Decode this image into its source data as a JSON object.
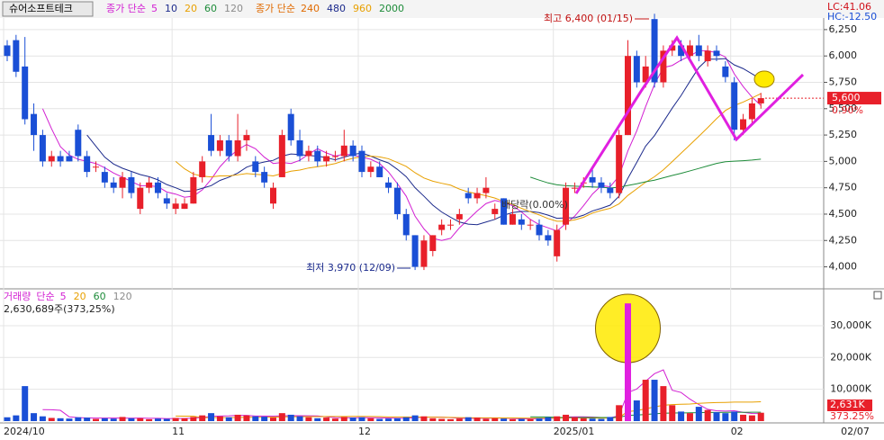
{
  "header": {
    "name": "슈어소프트테크",
    "lc": "LC:41.06",
    "hc": "HC:-12.50"
  },
  "chart_data": {
    "type": "candlestick",
    "ma_label": "종가 단순",
    "ma_periods": [
      5,
      10,
      20,
      60,
      120
    ],
    "ma_colors": [
      "#d21fd2",
      "#1c2a8c",
      "#e8a000",
      "#1e8c3a",
      "#8c8c8c"
    ],
    "ma_long_label": "종가 단순",
    "ma_long_periods": [
      240,
      480,
      960,
      2000
    ],
    "ma_long_colors": [
      "#e06a00",
      "#1c2a8c",
      "#e8a000",
      "#1e8c3a"
    ],
    "categories": [
      "2024/10",
      null,
      null,
      null,
      null,
      null,
      null,
      null,
      null,
      null,
      null,
      null,
      null,
      null,
      null,
      null,
      null,
      null,
      null,
      "11",
      null,
      null,
      null,
      null,
      null,
      null,
      null,
      null,
      null,
      null,
      null,
      null,
      null,
      null,
      null,
      null,
      null,
      null,
      null,
      null,
      "12",
      null,
      null,
      null,
      null,
      null,
      null,
      null,
      null,
      null,
      null,
      null,
      null,
      null,
      null,
      null,
      null,
      null,
      null,
      null,
      null,
      null,
      "2025/01",
      null,
      null,
      null,
      null,
      null,
      null,
      null,
      null,
      null,
      null,
      null,
      null,
      null,
      null,
      null,
      null,
      null,
      null,
      null,
      "02",
      null,
      null,
      null
    ],
    "ohlc": [
      [
        6100,
        6150,
        5950,
        6000
      ],
      [
        6150,
        6200,
        5800,
        5850
      ],
      [
        5900,
        6180,
        5350,
        5400
      ],
      [
        5450,
        5550,
        5100,
        5250
      ],
      [
        5250,
        5300,
        4950,
        5000
      ],
      [
        5000,
        5100,
        4950,
        5050
      ],
      [
        5050,
        5100,
        4950,
        5000
      ],
      [
        5050,
        5100,
        5000,
        5000
      ],
      [
        5300,
        5350,
        5000,
        5050
      ],
      [
        5050,
        5100,
        4850,
        4900
      ],
      [
        4950,
        5000,
        4900,
        4950
      ],
      [
        4900,
        4950,
        4750,
        4800
      ],
      [
        4800,
        4850,
        4700,
        4750
      ],
      [
        4750,
        4900,
        4650,
        4850
      ],
      [
        4850,
        4900,
        4650,
        4700
      ],
      [
        4550,
        4800,
        4500,
        4750
      ],
      [
        4750,
        4850,
        4700,
        4800
      ],
      [
        4800,
        4850,
        4650,
        4700
      ],
      [
        4650,
        4700,
        4550,
        4600
      ],
      [
        4550,
        4650,
        4500,
        4600
      ],
      [
        4550,
        4650,
        4550,
        4600
      ],
      [
        4600,
        4900,
        4600,
        4850
      ],
      [
        4850,
        5050,
        4800,
        5000
      ],
      [
        5250,
        5450,
        5050,
        5100
      ],
      [
        5100,
        5250,
        5050,
        5200
      ],
      [
        5200,
        5250,
        5000,
        5050
      ],
      [
        5050,
        5450,
        5000,
        5200
      ],
      [
        5200,
        5300,
        5100,
        5250
      ],
      [
        5000,
        5050,
        4850,
        4900
      ],
      [
        4900,
        4950,
        4750,
        4800
      ],
      [
        4600,
        4800,
        4550,
        4750
      ],
      [
        4850,
        5300,
        4850,
        5250
      ],
      [
        5450,
        5500,
        5150,
        5200
      ],
      [
        5200,
        5300,
        5000,
        5050
      ],
      [
        5050,
        5150,
        5000,
        5100
      ],
      [
        5100,
        5150,
        4950,
        5000
      ],
      [
        5000,
        5100,
        4950,
        5050
      ],
      [
        5050,
        5100,
        5000,
        5050
      ],
      [
        5050,
        5300,
        5000,
        5150
      ],
      [
        5150,
        5200,
        5000,
        5050
      ],
      [
        5100,
        5150,
        4850,
        4900
      ],
      [
        4900,
        5000,
        4850,
        4950
      ],
      [
        4950,
        5000,
        4850,
        4850
      ],
      [
        4800,
        4850,
        4700,
        4750
      ],
      [
        4750,
        4800,
        4450,
        4500
      ],
      [
        4500,
        4550,
        4250,
        4300
      ],
      [
        4300,
        4300,
        3970,
        4000
      ],
      [
        4000,
        4300,
        3970,
        4250
      ],
      [
        4150,
        4300,
        4100,
        4300
      ],
      [
        4350,
        4450,
        4300,
        4400
      ],
      [
        4400,
        4450,
        4350,
        4400
      ],
      [
        4450,
        4550,
        4400,
        4500
      ],
      [
        4700,
        4750,
        4600,
        4650
      ],
      [
        4650,
        4750,
        4600,
        4700
      ],
      [
        4700,
        4850,
        4650,
        4750
      ],
      [
        4500,
        4600,
        4450,
        4550
      ],
      [
        4650,
        4650,
        4400,
        4400
      ],
      [
        4400,
        4550,
        4400,
        4500
      ],
      [
        4450,
        4500,
        4350,
        4400
      ],
      [
        4400,
        4450,
        4350,
        4400
      ],
      [
        4400,
        4450,
        4250,
        4300
      ],
      [
        4300,
        4350,
        4200,
        4250
      ],
      [
        4100,
        4400,
        4050,
        4350
      ],
      [
        4400,
        4800,
        4350,
        4750
      ],
      [
        4750,
        4800,
        4700,
        4750
      ],
      [
        4800,
        4850,
        4750,
        4800
      ],
      [
        4850,
        4950,
        4750,
        4800
      ],
      [
        4800,
        4850,
        4700,
        4750
      ],
      [
        4750,
        4800,
        4650,
        4700
      ],
      [
        4700,
        5300,
        4650,
        5250
      ],
      [
        5250,
        6150,
        5250,
        6000
      ],
      [
        6000,
        6050,
        5700,
        5750
      ],
      [
        5750,
        6000,
        5700,
        5900
      ],
      [
        6350,
        6400,
        5700,
        5750
      ],
      [
        5750,
        6100,
        5700,
        6050
      ],
      [
        6050,
        6150,
        6000,
        6100
      ],
      [
        6100,
        6150,
        5950,
        6000
      ],
      [
        6000,
        6150,
        5950,
        6100
      ],
      [
        6100,
        6200,
        5950,
        6000
      ],
      [
        5950,
        6100,
        5900,
        6050
      ],
      [
        6050,
        6100,
        5950,
        6000
      ],
      [
        5900,
        5950,
        5750,
        5800
      ],
      [
        5750,
        5800,
        5200,
        5300
      ],
      [
        5300,
        5450,
        5250,
        5400
      ],
      [
        5400,
        5600,
        5350,
        5550
      ],
      [
        5550,
        5650,
        5500,
        5600
      ]
    ],
    "up_color": "#e8202a",
    "down_color": "#1a4fd6",
    "ylim": [
      3800,
      6360
    ],
    "yticks": [
      {
        "value": 4000,
        "label": "4,000"
      },
      {
        "value": 4250,
        "label": "4,250"
      },
      {
        "value": 4500,
        "label": "4,500"
      },
      {
        "value": 4750,
        "label": "4,750"
      },
      {
        "value": 5000,
        "label": "5,000"
      },
      {
        "value": 5250,
        "label": "5,250"
      },
      {
        "value": 5500,
        "label": "5,500"
      },
      {
        "value": 5750,
        "label": "5,750"
      },
      {
        "value": 6000,
        "label": "6,000"
      },
      {
        "value": 6250,
        "label": "6,250"
      }
    ],
    "high_label": "최고 6,400 (01/15)",
    "low_label": "최저 3,970 (12/09)",
    "event_label": "배당락(0.00%)",
    "last_price": {
      "value": 5600,
      "label": "5,600"
    },
    "change": "0.90%",
    "end_date": "02/07",
    "volume": {
      "title": "거래량",
      "ma_label": "단순",
      "ma_periods": [
        5,
        20,
        60,
        120
      ],
      "ma_colors": [
        "#d21fd2",
        "#e8a000",
        "#1e8c3a",
        "#8c8c8c"
      ],
      "summary": "2,630,689주(373,25%)",
      "values": [
        1200,
        1800,
        11000,
        2500,
        1500,
        1000,
        900,
        800,
        1200,
        1100,
        700,
        900,
        800,
        1300,
        900,
        900,
        600,
        800,
        700,
        1000,
        900,
        1300,
        1800,
        2500,
        1500,
        1200,
        2000,
        1800,
        1500,
        1400,
        1100,
        2500,
        2000,
        1500,
        1200,
        900,
        1100,
        800,
        1300,
        1100,
        1200,
        900,
        700,
        800,
        900,
        1200,
        1800,
        1500,
        900,
        700,
        600,
        800,
        1200,
        1100,
        700,
        900,
        800,
        600,
        700,
        600,
        900,
        1200,
        1500,
        2000,
        1200,
        900,
        800,
        700,
        1300,
        5000,
        37000,
        6500,
        13000,
        13000,
        11000,
        5000,
        3000,
        2500,
        4500,
        3500,
        2800,
        2500,
        3000,
        2000,
        1800,
        2631
      ],
      "ylim": [
        0,
        41300
      ],
      "yticks": [
        {
          "value": 10000,
          "label": "10,000K"
        },
        {
          "value": 20000,
          "label": "20,000K"
        },
        {
          "value": 30000,
          "label": "30,000K"
        }
      ],
      "last_label": "2,631K",
      "ratio_label": "373.25%"
    }
  }
}
